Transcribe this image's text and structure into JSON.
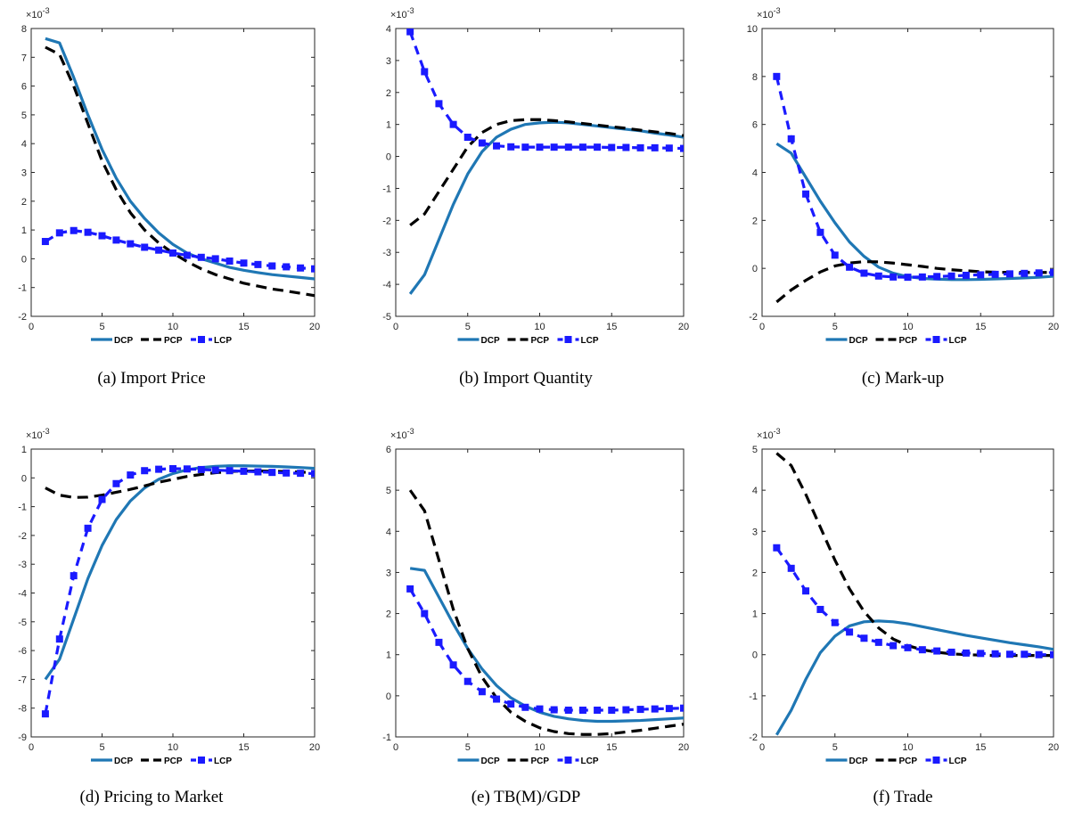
{
  "figure": {
    "exponent_label": "×10",
    "exponent_power": "-3",
    "legend": [
      "DCP",
      "PCP",
      "LCP"
    ]
  },
  "colors": {
    "DCP": "#1f77b4",
    "PCP": "#000000",
    "LCP": "#1a1aff"
  },
  "chart_data": [
    {
      "type": "line",
      "caption": "(a)  Import Price",
      "xlim": [
        0,
        20
      ],
      "ylim": [
        -2,
        8
      ],
      "xticks": [
        0,
        5,
        10,
        15,
        20
      ],
      "yticks": [
        -2,
        -1,
        0,
        1,
        2,
        3,
        4,
        5,
        6,
        7,
        8
      ],
      "x": [
        1,
        2,
        3,
        4,
        5,
        6,
        7,
        8,
        9,
        10,
        11,
        12,
        13,
        14,
        15,
        16,
        17,
        18,
        19,
        20
      ],
      "series": [
        {
          "name": "DCP",
          "values": [
            7.65,
            7.5,
            6.3,
            5.0,
            3.8,
            2.8,
            2.0,
            1.4,
            0.9,
            0.5,
            0.2,
            0.0,
            -0.15,
            -0.3,
            -0.4,
            -0.48,
            -0.55,
            -0.6,
            -0.65,
            -0.7
          ]
        },
        {
          "name": "PCP",
          "values": [
            7.35,
            7.1,
            6.0,
            4.7,
            3.4,
            2.4,
            1.6,
            1.0,
            0.55,
            0.2,
            -0.1,
            -0.35,
            -0.55,
            -0.7,
            -0.85,
            -0.95,
            -1.05,
            -1.12,
            -1.2,
            -1.28
          ]
        },
        {
          "name": "LCP",
          "values": [
            0.6,
            0.9,
            0.98,
            0.92,
            0.8,
            0.65,
            0.52,
            0.4,
            0.3,
            0.2,
            0.12,
            0.05,
            0.0,
            -0.08,
            -0.15,
            -0.2,
            -0.25,
            -0.28,
            -0.32,
            -0.35
          ]
        }
      ]
    },
    {
      "type": "line",
      "caption": "(b)  Import Quantity",
      "xlim": [
        0,
        20
      ],
      "ylim": [
        -5,
        4
      ],
      "xticks": [
        0,
        5,
        10,
        15,
        20
      ],
      "yticks": [
        -5,
        -4,
        -3,
        -2,
        -1,
        0,
        1,
        2,
        3,
        4
      ],
      "x": [
        1,
        2,
        3,
        4,
        5,
        6,
        7,
        8,
        9,
        10,
        11,
        12,
        13,
        14,
        15,
        16,
        17,
        18,
        19,
        20
      ],
      "series": [
        {
          "name": "DCP",
          "values": [
            -4.3,
            -3.7,
            -2.6,
            -1.5,
            -0.55,
            0.15,
            0.6,
            0.85,
            1.0,
            1.05,
            1.07,
            1.05,
            1.0,
            0.95,
            0.9,
            0.85,
            0.8,
            0.73,
            0.67,
            0.6
          ]
        },
        {
          "name": "PCP",
          "values": [
            -2.15,
            -1.8,
            -1.1,
            -0.4,
            0.3,
            0.75,
            1.0,
            1.12,
            1.15,
            1.15,
            1.12,
            1.08,
            1.03,
            0.98,
            0.93,
            0.88,
            0.82,
            0.77,
            0.72,
            0.65
          ]
        },
        {
          "name": "LCP",
          "values": [
            3.9,
            2.65,
            1.65,
            1.0,
            0.6,
            0.42,
            0.33,
            0.3,
            0.29,
            0.29,
            0.29,
            0.29,
            0.29,
            0.29,
            0.28,
            0.28,
            0.27,
            0.27,
            0.26,
            0.25
          ]
        }
      ]
    },
    {
      "type": "line",
      "caption": "(c)  Mark-up",
      "xlim": [
        0,
        20
      ],
      "ylim": [
        -2,
        10
      ],
      "xticks": [
        0,
        5,
        10,
        15,
        20
      ],
      "yticks": [
        -2,
        0,
        2,
        4,
        6,
        8,
        10
      ],
      "x": [
        1,
        2,
        3,
        4,
        5,
        6,
        7,
        8,
        9,
        10,
        11,
        12,
        13,
        14,
        15,
        16,
        17,
        18,
        19,
        20
      ],
      "series": [
        {
          "name": "DCP",
          "values": [
            5.2,
            4.8,
            3.8,
            2.8,
            1.9,
            1.1,
            0.5,
            0.05,
            -0.2,
            -0.35,
            -0.42,
            -0.45,
            -0.47,
            -0.47,
            -0.46,
            -0.44,
            -0.42,
            -0.4,
            -0.37,
            -0.33
          ]
        },
        {
          "name": "PCP",
          "values": [
            -1.4,
            -0.9,
            -0.5,
            -0.15,
            0.1,
            0.22,
            0.28,
            0.27,
            0.22,
            0.15,
            0.08,
            0.0,
            -0.06,
            -0.1,
            -0.14,
            -0.16,
            -0.17,
            -0.17,
            -0.17,
            -0.17
          ]
        },
        {
          "name": "LCP",
          "values": [
            8.0,
            5.4,
            3.1,
            1.5,
            0.55,
            0.05,
            -0.2,
            -0.32,
            -0.36,
            -0.37,
            -0.36,
            -0.34,
            -0.32,
            -0.29,
            -0.27,
            -0.25,
            -0.23,
            -0.21,
            -0.19,
            -0.17
          ]
        }
      ]
    },
    {
      "type": "line",
      "caption": "(d)  Pricing to Market",
      "xlim": [
        0,
        20
      ],
      "ylim": [
        -9,
        1
      ],
      "xticks": [
        0,
        5,
        10,
        15,
        20
      ],
      "yticks": [
        -9,
        -8,
        -7,
        -6,
        -5,
        -4,
        -3,
        -2,
        -1,
        0,
        1
      ],
      "x": [
        1,
        2,
        3,
        4,
        5,
        6,
        7,
        8,
        9,
        10,
        11,
        12,
        13,
        14,
        15,
        16,
        17,
        18,
        19,
        20
      ],
      "series": [
        {
          "name": "DCP",
          "values": [
            -7.0,
            -6.3,
            -4.9,
            -3.5,
            -2.35,
            -1.45,
            -0.8,
            -0.35,
            -0.05,
            0.15,
            0.28,
            0.36,
            0.4,
            0.42,
            0.42,
            0.41,
            0.4,
            0.38,
            0.36,
            0.33
          ]
        },
        {
          "name": "PCP",
          "values": [
            -0.35,
            -0.6,
            -0.68,
            -0.67,
            -0.6,
            -0.5,
            -0.4,
            -0.28,
            -0.15,
            -0.05,
            0.05,
            0.12,
            0.18,
            0.22,
            0.24,
            0.24,
            0.23,
            0.22,
            0.2,
            0.18
          ]
        },
        {
          "name": "LCP",
          "values": [
            -8.2,
            -5.6,
            -3.4,
            -1.75,
            -0.75,
            -0.2,
            0.1,
            0.25,
            0.3,
            0.32,
            0.31,
            0.29,
            0.27,
            0.25,
            0.23,
            0.21,
            0.19,
            0.17,
            0.16,
            0.15
          ]
        }
      ]
    },
    {
      "type": "line",
      "caption": "(e)  TB(M)/GDP",
      "xlim": [
        0,
        20
      ],
      "ylim": [
        -1,
        6
      ],
      "xticks": [
        0,
        5,
        10,
        15,
        20
      ],
      "yticks": [
        -1,
        0,
        1,
        2,
        3,
        4,
        5,
        6
      ],
      "x": [
        1,
        2,
        3,
        4,
        5,
        6,
        7,
        8,
        9,
        10,
        11,
        12,
        13,
        14,
        15,
        16,
        17,
        18,
        19,
        20
      ],
      "series": [
        {
          "name": "DCP",
          "values": [
            3.1,
            3.05,
            2.4,
            1.75,
            1.15,
            0.65,
            0.25,
            -0.05,
            -0.25,
            -0.4,
            -0.5,
            -0.56,
            -0.6,
            -0.62,
            -0.62,
            -0.61,
            -0.6,
            -0.58,
            -0.56,
            -0.54
          ]
        },
        {
          "name": "PCP",
          "values": [
            5.0,
            4.5,
            3.3,
            2.1,
            1.15,
            0.45,
            -0.05,
            -0.4,
            -0.62,
            -0.78,
            -0.87,
            -0.92,
            -0.94,
            -0.94,
            -0.92,
            -0.88,
            -0.84,
            -0.79,
            -0.74,
            -0.69
          ]
        },
        {
          "name": "LCP",
          "values": [
            2.6,
            2.0,
            1.3,
            0.75,
            0.35,
            0.1,
            -0.08,
            -0.2,
            -0.28,
            -0.32,
            -0.34,
            -0.35,
            -0.35,
            -0.35,
            -0.35,
            -0.34,
            -0.33,
            -0.32,
            -0.31,
            -0.3
          ]
        }
      ]
    },
    {
      "type": "line",
      "caption": "(f)  Trade",
      "xlim": [
        0,
        20
      ],
      "ylim": [
        -2,
        5
      ],
      "xticks": [
        0,
        5,
        10,
        15,
        20
      ],
      "yticks": [
        -2,
        -1,
        0,
        1,
        2,
        3,
        4,
        5
      ],
      "x": [
        1,
        2,
        3,
        4,
        5,
        6,
        7,
        8,
        9,
        10,
        11,
        12,
        13,
        14,
        15,
        16,
        17,
        18,
        19,
        20
      ],
      "series": [
        {
          "name": "DCP",
          "values": [
            -1.95,
            -1.35,
            -0.6,
            0.05,
            0.45,
            0.7,
            0.8,
            0.82,
            0.8,
            0.75,
            0.68,
            0.61,
            0.54,
            0.47,
            0.41,
            0.35,
            0.29,
            0.24,
            0.19,
            0.13
          ]
        },
        {
          "name": "PCP",
          "values": [
            4.9,
            4.6,
            3.9,
            3.1,
            2.3,
            1.6,
            1.05,
            0.65,
            0.38,
            0.22,
            0.12,
            0.06,
            0.02,
            0.0,
            -0.01,
            -0.02,
            -0.02,
            -0.02,
            -0.02,
            -0.02
          ]
        },
        {
          "name": "LCP",
          "values": [
            2.6,
            2.1,
            1.55,
            1.1,
            0.78,
            0.55,
            0.4,
            0.3,
            0.22,
            0.17,
            0.12,
            0.09,
            0.06,
            0.04,
            0.03,
            0.02,
            0.01,
            0.01,
            0.0,
            0.0
          ]
        }
      ]
    }
  ]
}
